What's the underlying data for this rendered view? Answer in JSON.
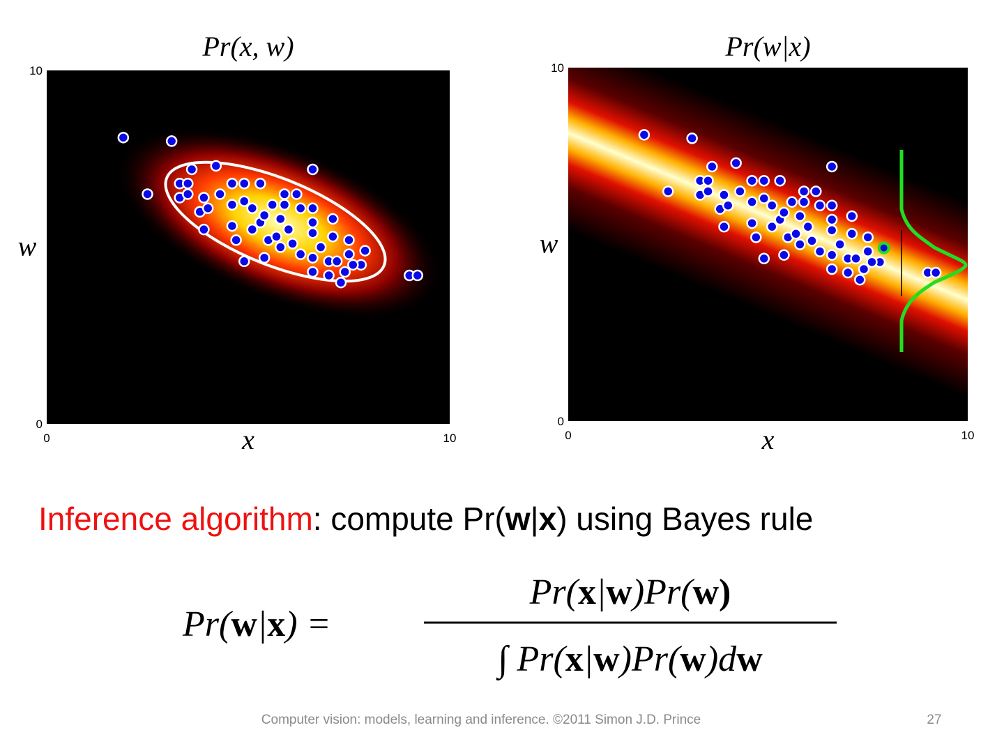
{
  "chart_data": [
    {
      "type": "scatter",
      "title": "Pr(x, w)",
      "xlabel": "x",
      "ylabel": "w",
      "xlim": [
        0,
        10
      ],
      "ylim": [
        0,
        10
      ],
      "xticks": [
        0,
        10
      ],
      "yticks": [
        0,
        10
      ],
      "color": "#0a0ae6",
      "x": [
        1.9,
        3.1,
        2.5,
        4.2,
        6.6,
        9.0,
        9.2,
        3.6,
        3.3,
        3.5,
        3.3,
        3.5,
        3.9,
        3.8,
        3.9,
        4.0,
        4.3,
        4.6,
        4.9,
        5.3,
        4.6,
        4.9,
        4.6,
        4.7,
        4.9,
        5.4,
        5.5,
        5.1,
        5.3,
        5.6,
        5.8,
        5.9,
        6.2,
        6.3,
        6.6,
        6.6,
        7.1,
        7.1,
        6.6,
        6.1,
        5.8,
        6.3,
        6.6,
        6.6,
        7.0,
        7.2,
        7.0,
        7.3,
        7.4,
        7.5,
        7.8,
        7.6,
        7.9,
        7.5,
        6.8,
        6.0,
        5.4,
        5.7,
        5.9,
        5.1
      ],
      "y": [
        8.1,
        8.0,
        6.5,
        7.3,
        7.2,
        4.2,
        4.2,
        7.2,
        6.8,
        6.8,
        6.4,
        6.5,
        6.4,
        6.0,
        5.5,
        6.1,
        6.5,
        6.8,
        6.8,
        6.8,
        6.2,
        6.3,
        5.6,
        5.2,
        4.6,
        4.7,
        5.2,
        5.5,
        5.7,
        6.2,
        5.8,
        6.5,
        6.5,
        6.1,
        6.1,
        5.7,
        5.8,
        5.3,
        5.4,
        5.1,
        5.0,
        4.8,
        4.7,
        4.3,
        4.6,
        4.6,
        4.2,
        4.0,
        4.3,
        4.8,
        4.5,
        4.5,
        4.9,
        5.2,
        5.0,
        5.5,
        5.9,
        5.3,
        6.2,
        6.1
      ]
    },
    {
      "type": "scatter",
      "title": "Pr(w|x)",
      "xlabel": "x",
      "ylabel": "w",
      "xlim": [
        0,
        10
      ],
      "ylim": [
        0,
        10
      ],
      "xticks": [
        0,
        10
      ],
      "yticks": [
        0,
        10
      ],
      "color": "#0a0ae6",
      "highlight_index": 52,
      "highlight_color": "#22dd22",
      "x": [
        1.9,
        3.1,
        2.5,
        4.2,
        6.6,
        9.0,
        9.2,
        3.6,
        3.3,
        3.5,
        3.3,
        3.5,
        3.9,
        3.8,
        3.9,
        4.0,
        4.3,
        4.6,
        4.9,
        5.3,
        4.6,
        4.9,
        4.6,
        4.7,
        4.9,
        5.4,
        5.5,
        5.1,
        5.3,
        5.6,
        5.8,
        5.9,
        6.2,
        6.3,
        6.6,
        6.6,
        7.1,
        7.1,
        6.6,
        6.1,
        5.8,
        6.3,
        6.6,
        6.6,
        7.0,
        7.2,
        7.0,
        7.3,
        7.4,
        7.5,
        7.8,
        7.6,
        7.9,
        7.5,
        6.8,
        6.0,
        5.4,
        5.7,
        5.9,
        5.1
      ],
      "y": [
        8.1,
        8.0,
        6.5,
        7.3,
        7.2,
        4.2,
        4.2,
        7.2,
        6.8,
        6.8,
        6.4,
        6.5,
        6.4,
        6.0,
        5.5,
        6.1,
        6.5,
        6.8,
        6.8,
        6.8,
        6.2,
        6.3,
        5.6,
        5.2,
        4.6,
        4.7,
        5.2,
        5.5,
        5.7,
        6.2,
        5.8,
        6.5,
        6.5,
        6.1,
        6.1,
        5.7,
        5.8,
        5.3,
        5.4,
        5.1,
        5.0,
        4.8,
        4.7,
        4.3,
        4.6,
        4.6,
        4.2,
        4.0,
        4.3,
        4.8,
        4.5,
        4.5,
        4.9,
        5.2,
        5.0,
        5.5,
        5.9,
        5.3,
        6.2,
        6.1
      ]
    }
  ],
  "heading": {
    "label": "Inference algorithm",
    "rest": [
      ":  compute Pr(",
      "w",
      "|",
      "x",
      ") using Bayes rule"
    ]
  },
  "equation": {
    "lhs": [
      "Pr(",
      "w",
      "|",
      "x",
      ") ="
    ],
    "numerator": [
      "Pr(",
      "x",
      "|",
      "w",
      ")Pr(",
      "w",
      ")"
    ],
    "denominator": [
      "∫ Pr(",
      "x",
      "|",
      "w",
      ")Pr(",
      "w",
      ")d",
      "w"
    ]
  },
  "footer": {
    "text": "Computer vision: models, learning and inference.  ©2011 Simon J.D. Prince",
    "page": "27"
  }
}
